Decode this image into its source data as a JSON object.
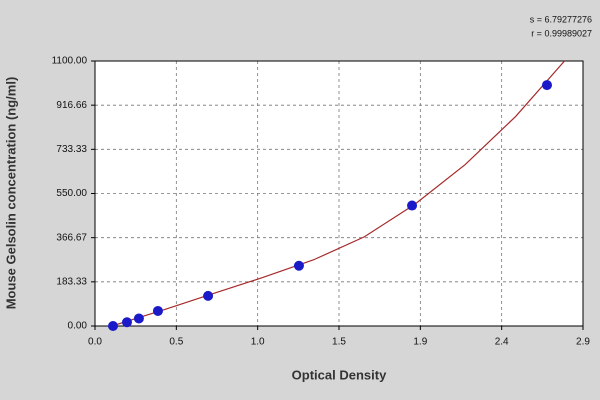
{
  "chart_data": {
    "type": "scatter",
    "annotations": [
      "s = 6.79277276",
      "r = 0.99989027"
    ],
    "x_label": "Optical Density",
    "y_label": "Mouse Gelsolin concentration (ng/ml)",
    "points": {
      "color": "#1a1ac8",
      "x": [
        0.107,
        0.19,
        0.261,
        0.374,
        0.672,
        1.212,
        1.884,
        2.686
      ],
      "y": [
        0,
        15.6,
        31.25,
        62.5,
        125,
        250,
        500,
        1000
      ]
    },
    "curve": {
      "color": "#a52a2a",
      "x": [
        0.1,
        0.4,
        0.7,
        1.0,
        1.3,
        1.6,
        1.9,
        2.2,
        2.5,
        2.79
      ],
      "y": [
        0,
        65,
        134,
        202,
        275,
        370,
        505,
        670,
        870,
        1100
      ]
    },
    "xlim": [
      0,
      2.9
    ],
    "xticks": [
      {
        "value": 0,
        "label": "0.0"
      },
      {
        "value": 0.4833,
        "label": "0.5"
      },
      {
        "value": 0.9667,
        "label": "1.0"
      },
      {
        "value": 1.45,
        "label": "1.5"
      },
      {
        "value": 1.9333,
        "label": "1.9"
      },
      {
        "value": 2.4167,
        "label": "2.4"
      },
      {
        "value": 2.9,
        "label": "2.9"
      }
    ],
    "ylim": [
      0,
      1100
    ],
    "yticks": [
      {
        "value": 0,
        "label": "0.00"
      },
      183.33,
      366.67,
      {
        "value": 550,
        "label": "550.00"
      },
      733.33,
      916.66,
      {
        "value": 1100,
        "label": "1100.00"
      }
    ],
    "grid": true
  }
}
